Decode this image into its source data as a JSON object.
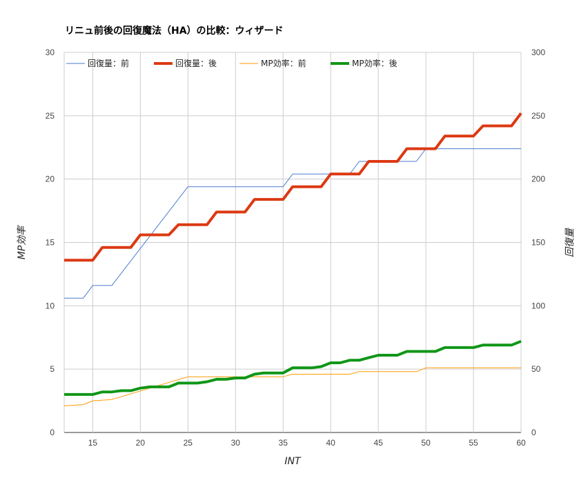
{
  "chart_data": {
    "type": "line",
    "title": "リニュ前後の回復魔法（HA）の比較：ウィザード",
    "xlabel": "INT",
    "ylabel_left": "MP効率",
    "ylabel_right": "回復量",
    "xlim": [
      12,
      60
    ],
    "x_ticks": [
      15,
      20,
      25,
      30,
      35,
      40,
      45,
      50,
      55,
      60
    ],
    "ylim_left": [
      0,
      30
    ],
    "y_ticks_left": [
      0,
      5,
      10,
      15,
      20,
      25,
      30
    ],
    "ylim_right": [
      0,
      300
    ],
    "y_ticks_right": [
      0,
      50,
      100,
      150,
      200,
      250,
      300
    ],
    "grid": true,
    "legend_position": "top",
    "series": [
      {
        "name": "回復量：前",
        "axis": "right",
        "color": "#4a7bd0",
        "width": 1,
        "points": [
          [
            12,
            106
          ],
          [
            14,
            106
          ],
          [
            15,
            116
          ],
          [
            17,
            116
          ],
          [
            25,
            194
          ],
          [
            35,
            194
          ],
          [
            36,
            204
          ],
          [
            42,
            204
          ],
          [
            43,
            214
          ],
          [
            49,
            214
          ],
          [
            50,
            224
          ],
          [
            60,
            224
          ]
        ]
      },
      {
        "name": "回復量：後",
        "axis": "right",
        "color": "#dc3912",
        "width": 4,
        "points": [
          [
            12,
            136
          ],
          [
            15,
            136
          ],
          [
            16,
            146
          ],
          [
            19,
            146
          ],
          [
            20,
            156
          ],
          [
            23,
            156
          ],
          [
            24,
            164
          ],
          [
            27,
            164
          ],
          [
            28,
            174
          ],
          [
            31,
            174
          ],
          [
            32,
            184
          ],
          [
            35,
            184
          ],
          [
            36,
            194
          ],
          [
            39,
            194
          ],
          [
            40,
            204
          ],
          [
            43,
            204
          ],
          [
            44,
            214
          ],
          [
            47,
            214
          ],
          [
            48,
            224
          ],
          [
            51,
            224
          ],
          [
            52,
            234
          ],
          [
            55,
            234
          ],
          [
            56,
            242
          ],
          [
            59,
            242
          ],
          [
            60,
            252
          ]
        ]
      },
      {
        "name": "MP効率：前",
        "axis": "left",
        "color": "#ff9900",
        "width": 1,
        "points": [
          [
            12,
            2.1
          ],
          [
            14,
            2.2
          ],
          [
            15,
            2.5
          ],
          [
            17,
            2.6
          ],
          [
            25,
            4.4
          ],
          [
            35,
            4.4
          ],
          [
            36,
            4.6
          ],
          [
            42,
            4.6
          ],
          [
            43,
            4.8
          ],
          [
            49,
            4.8
          ],
          [
            50,
            5.1
          ],
          [
            60,
            5.1
          ]
        ]
      },
      {
        "name": "MP効率：後",
        "axis": "left",
        "color": "#109618",
        "width": 4,
        "points": [
          [
            12,
            3.0
          ],
          [
            15,
            3.0
          ],
          [
            16,
            3.2
          ],
          [
            17,
            3.2
          ],
          [
            18,
            3.3
          ],
          [
            19,
            3.3
          ],
          [
            20,
            3.5
          ],
          [
            21,
            3.6
          ],
          [
            23,
            3.6
          ],
          [
            24,
            3.9
          ],
          [
            26,
            3.9
          ],
          [
            27,
            4.0
          ],
          [
            28,
            4.2
          ],
          [
            29,
            4.2
          ],
          [
            30,
            4.3
          ],
          [
            31,
            4.3
          ],
          [
            32,
            4.6
          ],
          [
            33,
            4.7
          ],
          [
            35,
            4.7
          ],
          [
            36,
            5.1
          ],
          [
            38,
            5.1
          ],
          [
            39,
            5.2
          ],
          [
            40,
            5.5
          ],
          [
            41,
            5.5
          ],
          [
            42,
            5.7
          ],
          [
            43,
            5.7
          ],
          [
            44,
            5.9
          ],
          [
            45,
            6.1
          ],
          [
            47,
            6.1
          ],
          [
            48,
            6.4
          ],
          [
            51,
            6.4
          ],
          [
            52,
            6.7
          ],
          [
            55,
            6.7
          ],
          [
            56,
            6.9
          ],
          [
            59,
            6.9
          ],
          [
            60,
            7.2
          ]
        ]
      }
    ]
  }
}
